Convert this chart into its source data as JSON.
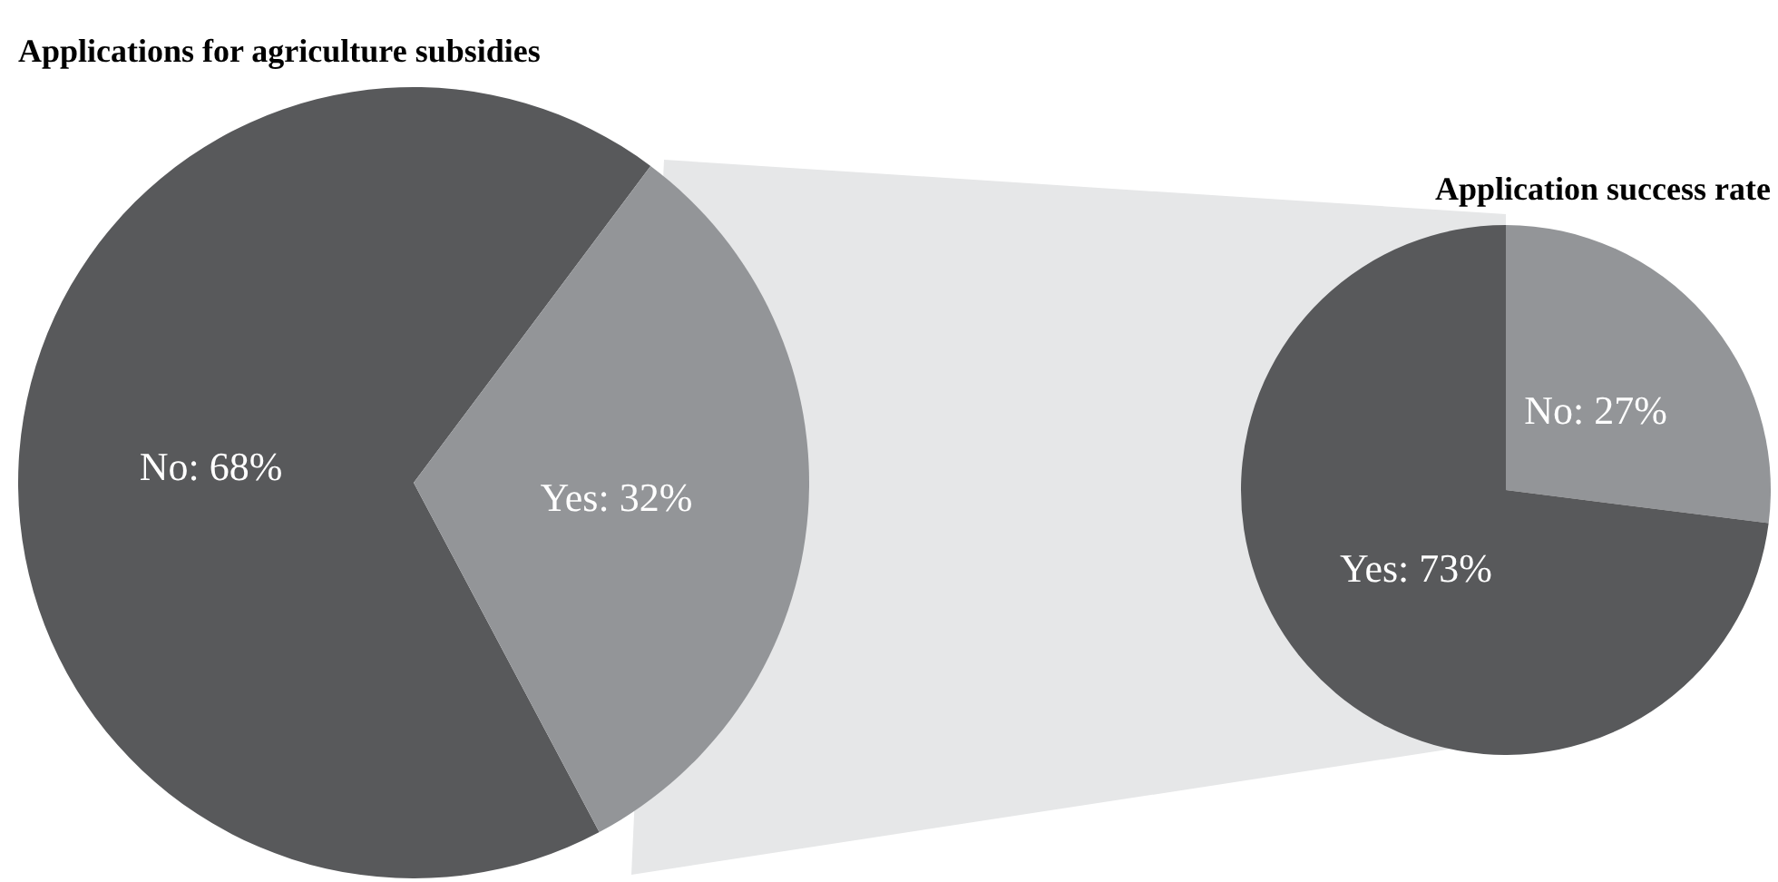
{
  "chart_data": [
    {
      "type": "pie",
      "title": "Applications for agriculture subsidies",
      "categories": [
        "No",
        "Yes"
      ],
      "values": [
        68,
        32
      ],
      "colors": [
        "#58595b",
        "#939598"
      ],
      "value_labels": [
        "68%",
        "32%"
      ],
      "legend": false
    },
    {
      "type": "pie",
      "title": "Application success rate",
      "categories": [
        "No",
        "Yes"
      ],
      "values": [
        27,
        73
      ],
      "colors": [
        "#939598",
        "#58595b"
      ],
      "value_labels": [
        "27%",
        "73%"
      ],
      "legend": false
    }
  ]
}
